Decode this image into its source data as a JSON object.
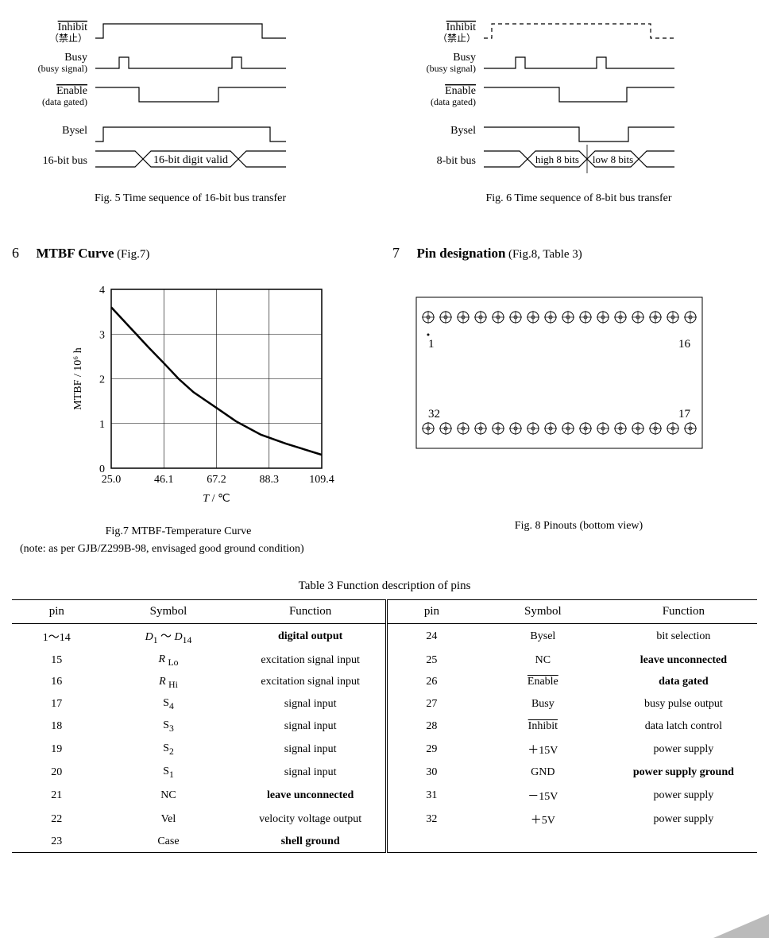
{
  "timing5": {
    "signals": [
      {
        "name": "Inhibit",
        "overline": true,
        "sub": "（禁止）"
      },
      {
        "name": "Busy",
        "overline": false,
        "sub": "(busy signal)"
      },
      {
        "name": "Enable",
        "overline": true,
        "sub": "(data gated)"
      },
      {
        "name": "Bysel",
        "overline": false,
        "sub": ""
      }
    ],
    "bus_label": "16-bit bus",
    "bus_text": "16-bit digit valid",
    "caption": "Fig. 5 Time sequence of 16-bit bus transfer"
  },
  "timing6": {
    "signals": [
      {
        "name": "Inhibit",
        "overline": true,
        "sub": "（禁止）"
      },
      {
        "name": "Busy",
        "overline": false,
        "sub": "(busy signal)"
      },
      {
        "name": "Enable",
        "overline": true,
        "sub": "(data gated)"
      },
      {
        "name": "Bysel",
        "overline": false,
        "sub": ""
      }
    ],
    "bus_label": "8-bit bus",
    "bus_text1": "high 8 bits",
    "bus_text2": "low 8 bits",
    "caption": "Fig. 6 Time sequence of 8-bit bus transfer"
  },
  "section6": {
    "num": "6",
    "title": "MTBF Curve",
    "note": "(Fig.7)"
  },
  "section7": {
    "num": "7",
    "title": "Pin designation",
    "note": "(Fig.8, Table 3)"
  },
  "mtbf": {
    "ylabel": "MTBF / 10⁶ h",
    "xlabel_T": "T",
    "xlabel_unit": " / ℃",
    "ylim": [
      0,
      4
    ],
    "yticks": [
      0,
      1,
      2,
      3,
      4
    ],
    "xticks": [
      "25.0",
      "46.1",
      "67.2",
      "88.3",
      "109.4"
    ],
    "xtick_vals": [
      25.0,
      46.1,
      67.2,
      88.3,
      109.4
    ],
    "curve": [
      [
        25.0,
        3.6
      ],
      [
        30,
        3.3
      ],
      [
        35,
        3.0
      ],
      [
        40,
        2.7
      ],
      [
        46.1,
        2.35
      ],
      [
        52,
        2.0
      ],
      [
        58,
        1.7
      ],
      [
        67.2,
        1.35
      ],
      [
        75,
        1.05
      ],
      [
        85,
        0.75
      ],
      [
        95,
        0.55
      ],
      [
        109.4,
        0.3
      ]
    ],
    "caption": "Fig.7  MTBF-Temperature Curve",
    "note": "(note: as per GJB/Z299B-98, envisaged good ground condition)",
    "line_color": "#000000",
    "grid_color": "#000000",
    "bg": "#ffffff"
  },
  "pinout": {
    "pin_labels": {
      "tl": "1",
      "tr": "16",
      "bl": "32",
      "br": "17"
    },
    "pins_per_row": 16,
    "caption": "Fig. 8 Pinouts (bottom view)"
  },
  "table3": {
    "caption": "Table 3  Function description of pins",
    "headers": [
      "pin",
      "Symbol",
      "Function",
      "pin",
      "Symbol",
      "Function"
    ],
    "rows_left": [
      {
        "pin": "1～14",
        "symbol_html": "<span class='italic'>D</span><sub>1</sub> ～ <span class='italic'>D</span><sub>14</sub>",
        "func": "digital output",
        "bold": true
      },
      {
        "pin": "15",
        "symbol_html": "<span class='italic'>R</span> <sub>Lo</sub>",
        "func": "excitation signal input",
        "bold": false
      },
      {
        "pin": "16",
        "symbol_html": "<span class='italic'>R</span> <sub>Hi</sub>",
        "func": "excitation signal input",
        "bold": false
      },
      {
        "pin": "17",
        "symbol_html": "S<sub>4</sub>",
        "func": "signal input",
        "bold": false
      },
      {
        "pin": "18",
        "symbol_html": "S<sub>3</sub>",
        "func": "signal input",
        "bold": false
      },
      {
        "pin": "19",
        "symbol_html": "S<sub>2</sub>",
        "func": "signal input",
        "bold": false
      },
      {
        "pin": "20",
        "symbol_html": "S<sub>1</sub>",
        "func": "signal input",
        "bold": false
      },
      {
        "pin": "21",
        "symbol_html": "NC",
        "func": "leave unconnected",
        "bold": true
      },
      {
        "pin": "22",
        "symbol_html": "Vel",
        "func": "velocity voltage output",
        "bold": false
      },
      {
        "pin": "23",
        "symbol_html": "Case",
        "func": "shell ground",
        "bold": true
      }
    ],
    "rows_right": [
      {
        "pin": "24",
        "symbol_html": "Bysel",
        "func": "bit selection",
        "bold": false
      },
      {
        "pin": "25",
        "symbol_html": "NC",
        "func": "leave unconnected",
        "bold": true
      },
      {
        "pin": "26",
        "symbol_html": "<span class='overline'>Enable</span>",
        "func": "data gated",
        "bold": true
      },
      {
        "pin": "27",
        "symbol_html": "Busy",
        "func": "busy pulse output",
        "bold": false
      },
      {
        "pin": "28",
        "symbol_html": "<span class='overline'>Inhibit</span>",
        "func": "data latch control",
        "bold": false
      },
      {
        "pin": "29",
        "symbol_html": "＋15V",
        "func": "power supply",
        "bold": false
      },
      {
        "pin": "30",
        "symbol_html": "GND",
        "func": "power supply ground",
        "bold": true
      },
      {
        "pin": "31",
        "symbol_html": "－15V",
        "func": "power supply",
        "bold": false
      },
      {
        "pin": "32",
        "symbol_html": "＋5V",
        "func": "power supply",
        "bold": false
      }
    ]
  }
}
